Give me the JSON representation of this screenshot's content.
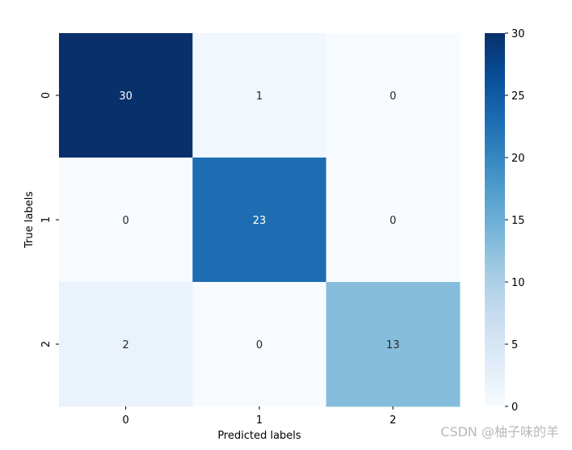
{
  "chart_data": {
    "type": "heatmap",
    "xlabel": "Predicted labels",
    "ylabel": "True labels",
    "x_categories": [
      "0",
      "1",
      "2"
    ],
    "y_categories": [
      "0",
      "1",
      "2"
    ],
    "values": [
      [
        30,
        1,
        0
      ],
      [
        0,
        23,
        0
      ],
      [
        2,
        0,
        13
      ]
    ],
    "colormap": "Blues",
    "colorbar": {
      "range": [
        0,
        30
      ],
      "ticks": [
        "0",
        "5",
        "10",
        "15",
        "20",
        "25",
        "30"
      ]
    }
  },
  "watermark": "CSDN @柚子味的羊"
}
